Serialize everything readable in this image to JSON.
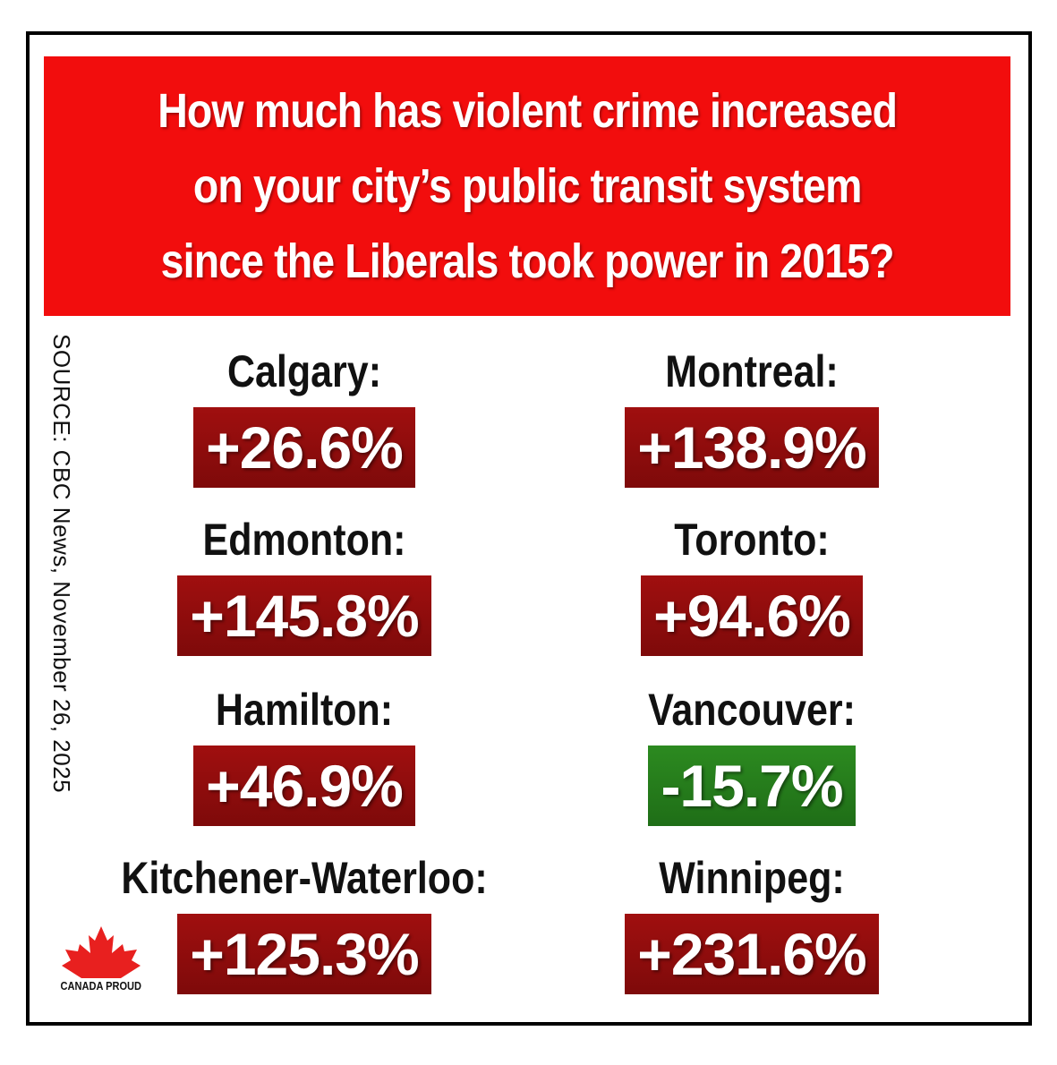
{
  "headline": {
    "line1": "How much has violent crime increased",
    "line2": "on your city’s public transit system",
    "line3": "since the Liberals took power in 2015?"
  },
  "source": "SOURCE: CBC News, November 26, 2025",
  "cities": [
    {
      "name": "Calgary:",
      "value": "+26.6%"
    },
    {
      "name": "Montreal:",
      "value": "+138.9%"
    },
    {
      "name": "Edmonton:",
      "value": "+145.8%"
    },
    {
      "name": "Toronto:",
      "value": "+94.6%"
    },
    {
      "name": "Hamilton:",
      "value": "+46.9%"
    },
    {
      "name": "Vancouver:",
      "value": "-15.7%"
    },
    {
      "name": "Kitchener-Waterloo:",
      "value": "+125.3%"
    },
    {
      "name": "Winnipeg:",
      "value": "+231.6%"
    }
  ],
  "logo": {
    "text": "CANADA PROUD",
    "icon": "maple-leaf-icon"
  },
  "colors": {
    "header": "#f20d0d",
    "increase": "#a00f0f",
    "decrease": "#2c8a20"
  }
}
